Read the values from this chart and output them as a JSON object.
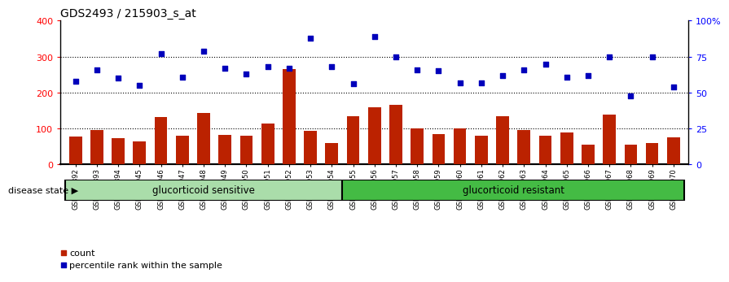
{
  "title": "GDS2493 / 215903_s_at",
  "samples": [
    "GSM135892",
    "GSM135893",
    "GSM135894",
    "GSM135945",
    "GSM135946",
    "GSM135947",
    "GSM135948",
    "GSM135949",
    "GSM135950",
    "GSM135951",
    "GSM135952",
    "GSM135953",
    "GSM135954",
    "GSM135955",
    "GSM135956",
    "GSM135957",
    "GSM135958",
    "GSM135959",
    "GSM135960",
    "GSM135961",
    "GSM135962",
    "GSM135963",
    "GSM135964",
    "GSM135965",
    "GSM135966",
    "GSM135967",
    "GSM135968",
    "GSM135969",
    "GSM135970"
  ],
  "counts": [
    78,
    96,
    74,
    65,
    133,
    80,
    144,
    82,
    80,
    115,
    265,
    93,
    60,
    135,
    160,
    165,
    100,
    85,
    100,
    80,
    135,
    95,
    80,
    90,
    55,
    140,
    55,
    60,
    75
  ],
  "percentile_ranks": [
    58,
    66,
    60,
    55,
    77,
    61,
    79,
    67,
    63,
    68,
    67,
    88,
    68,
    56,
    89,
    75,
    66,
    65,
    57,
    57,
    62,
    66,
    70,
    61,
    62,
    75,
    48,
    75,
    54
  ],
  "sensitive_count": 13,
  "resistant_count": 16,
  "bar_color": "#bb2200",
  "dot_color": "#0000bb",
  "sensitive_color": "#aaddaa",
  "resistant_color": "#44bb44",
  "bg_color": "#ffffff",
  "ylim_left": [
    0,
    400
  ],
  "ylim_right": [
    0,
    100
  ],
  "yticks_left": [
    0,
    100,
    200,
    300,
    400
  ],
  "yticks_right": [
    0,
    25,
    50,
    75,
    100
  ],
  "ytick_labels_right": [
    "0",
    "25",
    "50",
    "75",
    "100%"
  ],
  "gridlines": [
    100,
    200,
    300
  ],
  "legend_count_label": "count",
  "legend_pct_label": "percentile rank within the sample",
  "disease_state_label": "disease state",
  "sensitive_label": "glucorticoid sensitive",
  "resistant_label": "glucorticoid resistant"
}
